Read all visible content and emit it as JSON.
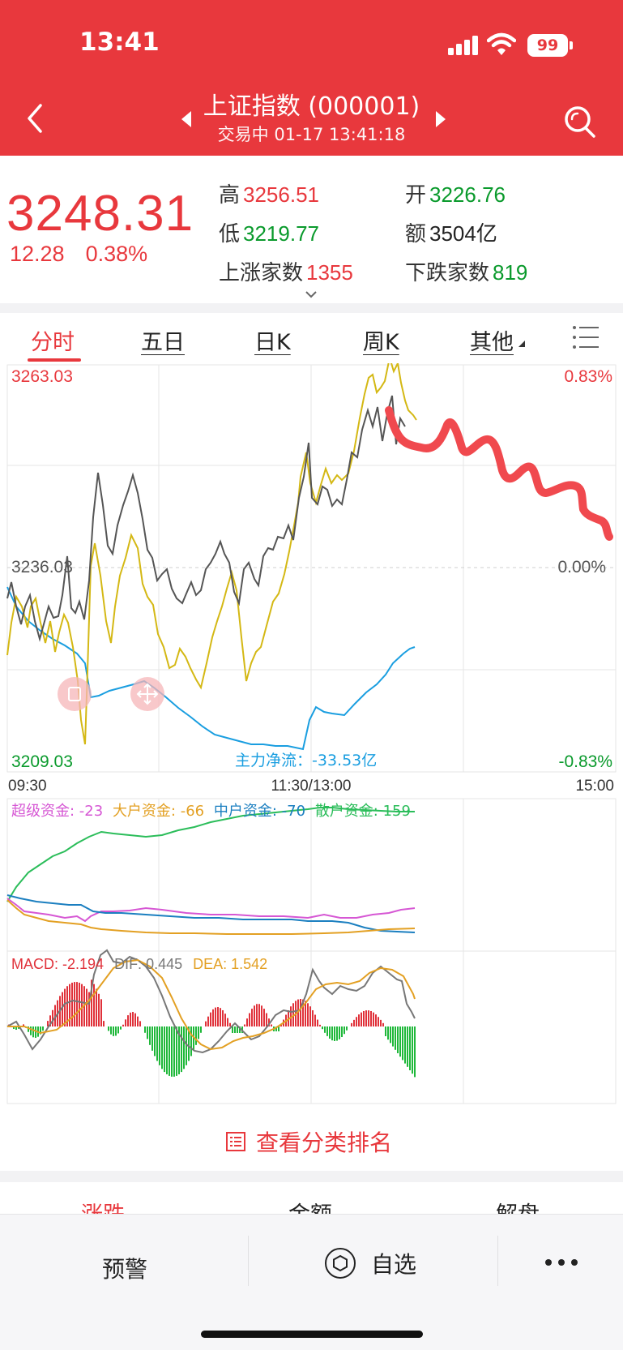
{
  "status_bar": {
    "time": "13:41",
    "battery": "99"
  },
  "header": {
    "title": "上证指数 (000001)",
    "subtitle": "交易中 01-17 13:41:18"
  },
  "quote": {
    "price": "3248.31",
    "change": "12.28",
    "change_pct": "0.38%",
    "high_label": "高",
    "high": "3256.51",
    "open_label": "开",
    "open": "3226.76",
    "low_label": "低",
    "low": "3219.77",
    "amount_label": "额",
    "amount": "3504亿",
    "up_count_label": "上涨家数",
    "up_count": "1355",
    "down_count_label": "下跌家数",
    "down_count": "819"
  },
  "tabs": [
    "分时",
    "五日",
    "日K",
    "周K",
    "其他"
  ],
  "active_tab": "分时",
  "chart": {
    "max_label": "3263.03",
    "mid_label": "3236.03",
    "min_label": "3209.03",
    "max_pct": "0.83%",
    "mid_pct": "0.00%",
    "min_pct": "-0.83%",
    "time_start": "09:30",
    "time_mid": "11:30/13:00",
    "time_end": "15:00",
    "main_flow_label": "主力净流：",
    "main_flow_value": "-33.53亿",
    "fund_super_label": "超级资金: ",
    "fund_super_value": "-23",
    "fund_large_label": "大户资金: ",
    "fund_large_value": "-66",
    "fund_mid_label": "中户资金: ",
    "fund_mid_value": "-70",
    "fund_retail_label": "散户资金: ",
    "fund_retail_value": "159",
    "macd_label": "MACD: ",
    "macd_value": "-2.194",
    "dif_label": "DIF: ",
    "dif_value": "0.445",
    "dea_label": "DEA: ",
    "dea_value": "1.542",
    "colors": {
      "price": "#555555",
      "avg": "#d4b814",
      "flow": "#1a9ee0",
      "annotation": "#f0494e",
      "macd_up": "#e0313a",
      "macd_down": "#1fb83a"
    }
  },
  "chart_data": {
    "type": "line",
    "x_range": [
      "09:30",
      "15:00"
    ],
    "ylim": [
      3209.03,
      3263.03
    ],
    "reference": 3236.03,
    "series": []
  },
  "actions": {
    "rank_button": "查看分类排名"
  },
  "bottom_tabs": [
    "涨跌",
    "金额",
    "解盘"
  ],
  "bottom_bar": {
    "alert": "预警",
    "watchlist": "自选"
  }
}
